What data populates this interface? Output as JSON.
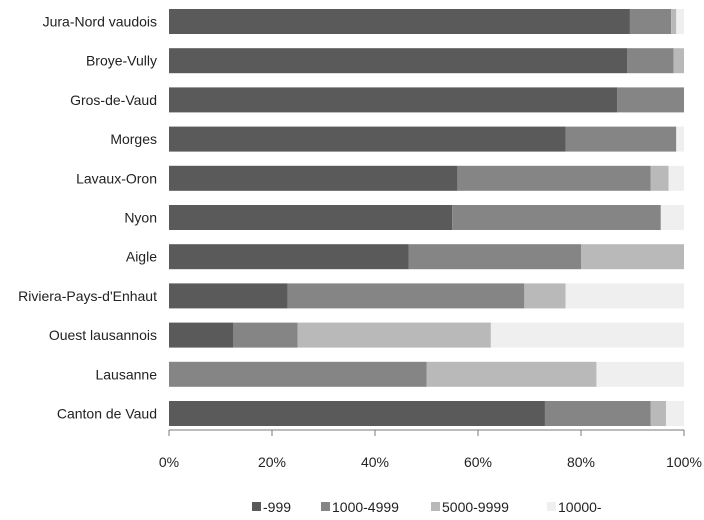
{
  "chart_data": {
    "type": "bar",
    "orientation": "horizontal",
    "stacked": "percent",
    "categories": [
      "Jura-Nord vaudois",
      "Broye-Vully",
      "Gros-de-Vaud",
      "Morges",
      "Lavaux-Oron",
      "Nyon",
      "Aigle",
      "Riviera-Pays-d'Enhaut",
      "Ouest lausannois",
      "Lausanne",
      "Canton de Vaud"
    ],
    "series": [
      {
        "name": "-999",
        "color": "#5a5a5a",
        "values": [
          89.5,
          89,
          87,
          77,
          56,
          55,
          46.5,
          23,
          12.5,
          0,
          73
        ]
      },
      {
        "name": "1000-4999",
        "color": "#858585",
        "values": [
          8,
          9,
          13,
          21.5,
          37.5,
          40.5,
          33.5,
          46,
          12.5,
          50,
          20.5
        ]
      },
      {
        "name": "5000-9999",
        "color": "#b9b9b9",
        "values": [
          1,
          2,
          0,
          0,
          3.5,
          0,
          20,
          8,
          37.5,
          33,
          3
        ]
      },
      {
        "name": "10000-",
        "color": "#efefef",
        "values": [
          1.5,
          0,
          0,
          1.5,
          3,
          4.5,
          0,
          23,
          37.5,
          17,
          3.5
        ]
      }
    ],
    "x_ticks": [
      "0%",
      "20%",
      "40%",
      "60%",
      "80%",
      "100%"
    ],
    "xlim": [
      0,
      100
    ],
    "legend_position": "bottom",
    "grid": false
  }
}
